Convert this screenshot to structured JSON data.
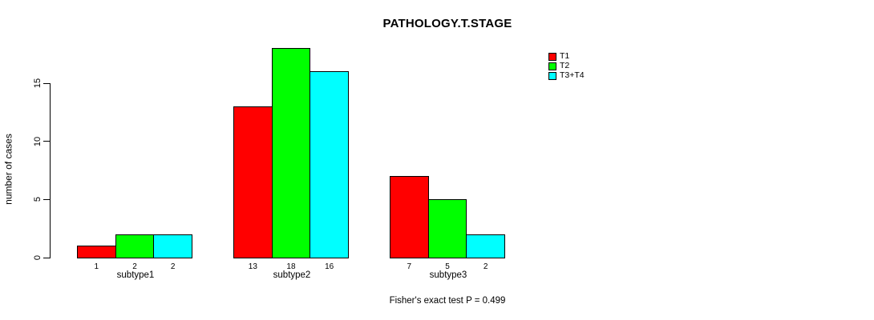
{
  "chart_data": {
    "type": "bar",
    "title": "PATHOLOGY.T.STAGE",
    "categories": [
      "subtype1",
      "subtype2",
      "subtype3"
    ],
    "series": [
      {
        "name": "T1",
        "color": "#FF0000",
        "values": [
          1,
          13,
          7
        ]
      },
      {
        "name": "T2",
        "color": "#00FF00",
        "values": [
          2,
          18,
          5
        ]
      },
      {
        "name": "T3+T4",
        "color": "#00FFFF",
        "values": [
          2,
          16,
          2
        ]
      }
    ],
    "ylabel": "number of cases",
    "xlabel": "",
    "yticks": [
      0,
      5,
      10,
      15
    ],
    "ylim": [
      0,
      18
    ],
    "grid": false,
    "legend_position": "top-right",
    "show_value_labels": true,
    "annotation": "Fisher's exact test P = 0.499"
  }
}
